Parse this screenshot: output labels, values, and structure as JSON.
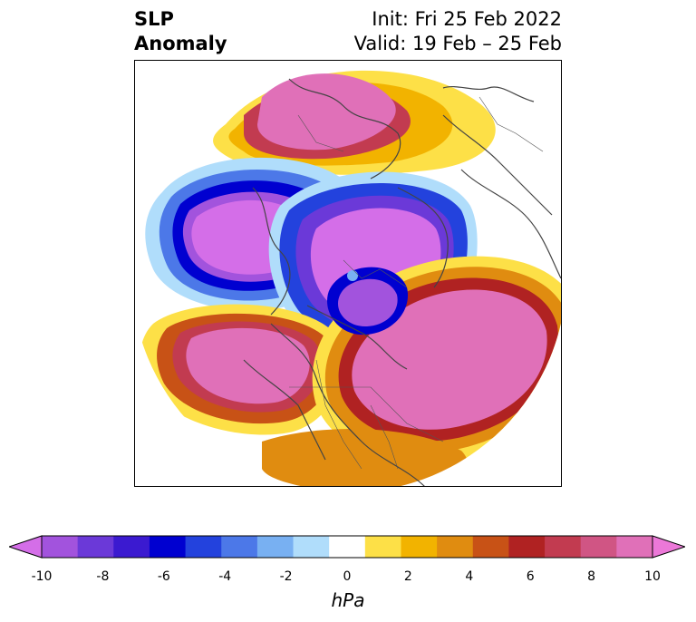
{
  "title": {
    "left": "SLP\nAnomaly",
    "init": "Init: Fri 25 Feb 2022",
    "valid": "Valid: 19 Feb – 25 Feb"
  },
  "colorbar": {
    "units": "hPa",
    "min": -10,
    "max": 10,
    "extend": "both",
    "levels": [
      -10,
      -9,
      -8,
      -7,
      -6,
      -5,
      -4,
      -3,
      -2,
      -1,
      1,
      2,
      3,
      4,
      5,
      6,
      7,
      8,
      9,
      10
    ],
    "ticks": [
      "-10",
      "-8",
      "-6",
      "-4",
      "-2",
      "0",
      "2",
      "4",
      "6",
      "8",
      "10"
    ],
    "colors": [
      "#d46ee8",
      "#a253dd",
      "#6b39d8",
      "#3b1ad0",
      "#0000d0",
      "#2342dd",
      "#4c78e8",
      "#78b0f2",
      "#b0ddfb",
      "#ffffff",
      "#fde047",
      "#f2b300",
      "#e08c10",
      "#c85216",
      "#b02222",
      "#c23b50",
      "#d05584",
      "#e070b8",
      "#ec78d8"
    ]
  },
  "map": {
    "projection": "north-polar-stereographic",
    "field": "sea level pressure anomaly",
    "coastline_color": "#444444"
  }
}
